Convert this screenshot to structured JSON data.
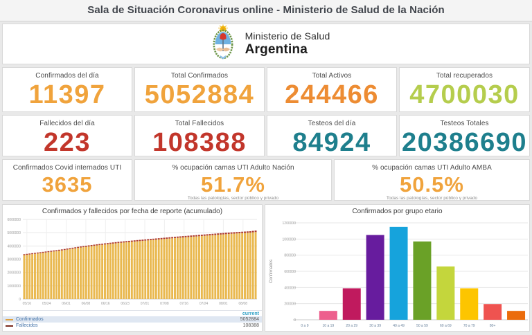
{
  "header": {
    "title": "Sala de Situación Coronavirus online - Ministerio de Salud de la Nación"
  },
  "logo": {
    "ministry": "Ministerio de Salud",
    "country": "Argentina",
    "emblem_icon": "argentina-coat-of-arms"
  },
  "kpis": {
    "row1": [
      {
        "label": "Confirmados del día",
        "value": "11397",
        "color": "#f0a33c"
      },
      {
        "label": "Total Confirmados",
        "value": "5052884",
        "color": "#f0a33c"
      },
      {
        "label": "Total Activos",
        "value": "244466",
        "color": "#ed8c33"
      },
      {
        "label": "Total recuperados",
        "value": "4700030",
        "color": "#b5cd4d"
      }
    ],
    "row2": [
      {
        "label": "Fallecidos del día",
        "value": "223",
        "color": "#c2362b"
      },
      {
        "label": "Total Fallecidos",
        "value": "108388",
        "color": "#c2362b"
      },
      {
        "label": "Testeos del día",
        "value": "84924",
        "color": "#1e7f8d"
      },
      {
        "label": "Testeos Totales",
        "value": "20386690",
        "color": "#1e7f8d"
      }
    ],
    "row3": [
      {
        "label": "Confirmados Covid internados UTI",
        "value": "3635",
        "color": "#f0a33c",
        "note": ""
      },
      {
        "label": "% ocupación camas UTI Adulto Nación",
        "value": "51.7%",
        "color": "#f0a33c",
        "note": "Todas las patologías, sector público y privado"
      },
      {
        "label": "% ocupación camas UTI Adulto AMBA",
        "value": "50.5%",
        "color": "#f0a33c",
        "note": "Todas las patologías, sector público y privado"
      }
    ]
  },
  "chart_data": [
    {
      "type": "bar",
      "stacked": true,
      "title": "Confirmados y fallecidos por fecha de reporte (acumulado)",
      "xlabel": "",
      "ylabel": "",
      "ylim": [
        0,
        6000000
      ],
      "y_ticks": [
        "0",
        "1000000",
        "2000000",
        "3000000",
        "4000000",
        "5000000",
        "6000000"
      ],
      "x_tick_labels": [
        "05/16",
        "05/24",
        "06/01",
        "06/08",
        "06/16",
        "06/23",
        "07/01",
        "07/08",
        "07/16",
        "07/24",
        "08/01",
        "08/08"
      ],
      "tick_start": 1,
      "tick_every": 7.3,
      "grid": true,
      "legend_header": "current",
      "series": [
        {
          "name": "Confirmados",
          "color": "#e9b84e",
          "swatch": "#dfa13f",
          "current": "5052884",
          "values": [
            3307285,
            3332317,
            3357350,
            3382382,
            3407415,
            3432447,
            3457480,
            3482512,
            3508327,
            3534141,
            3559956,
            3585771,
            3611586,
            3637400,
            3663215,
            3694820,
            3726424,
            3758029,
            3789633,
            3821238,
            3852842,
            3884447,
            3910405,
            3936364,
            3962322,
            3988281,
            4014239,
            4040198,
            4066156,
            4088477,
            4110797,
            4133118,
            4155438,
            4177759,
            4200079,
            4222400,
            4240709,
            4259018,
            4277327,
            4295637,
            4313946,
            4332255,
            4350564,
            4367680,
            4384795,
            4401911,
            4419027,
            4436143,
            4453258,
            4470374,
            4488001,
            4505628,
            4523255,
            4540882,
            4558509,
            4576136,
            4593763,
            4609319,
            4624876,
            4640432,
            4655988,
            4671544,
            4687101,
            4702657,
            4718328,
            4733998,
            4749669,
            4765339,
            4781010,
            4796680,
            4812351,
            4827645,
            4842939,
            4858233,
            4873526,
            4888820,
            4904114,
            4919408,
            4931343,
            4943277,
            4955212,
            4967147,
            4979082,
            4991016,
            5002951,
            5029075,
            5052884
          ]
        },
        {
          "name": "Fallecidos",
          "color": "#ae3b30",
          "swatch": "#7a2a1d",
          "current": "108388",
          "values": [
            71027,
            71429,
            71831,
            72232,
            72634,
            73036,
            73438,
            73840,
            74242,
            74643,
            75045,
            75447,
            75849,
            76251,
            76652,
            77054,
            77456,
            78019,
            78583,
            79146,
            79709,
            80273,
            80836,
            81400,
            81963,
            82526,
            83090,
            83653,
            84216,
            84780,
            85343,
            85903,
            86463,
            87023,
            87583,
            88143,
            88703,
            89263,
            89824,
            90384,
            90944,
            91504,
            92064,
            92624,
            93184,
            93744,
            94304,
            94658,
            95011,
            95365,
            95719,
            96072,
            96426,
            96780,
            97133,
            97487,
            97840,
            98194,
            98548,
            98901,
            99255,
            99600,
            99944,
            100289,
            100633,
            100978,
            101323,
            101667,
            102012,
            102356,
            102701,
            103045,
            103390,
            103735,
            104079,
            104424,
            104768,
            105113,
            105477,
            105841,
            106205,
            106569,
            106932,
            107296,
            107660,
            108024,
            108388
          ]
        }
      ]
    },
    {
      "type": "bar",
      "title": "Confirmados por grupo etario",
      "xlabel": "",
      "ylabel": "Confirmados",
      "ylim": [
        0,
        1200000
      ],
      "y_ticks": [
        "0",
        "200000",
        "400000",
        "600000",
        "800000",
        "1000000",
        "1200000"
      ],
      "grid": true,
      "categories": [
        "0 a 9",
        "10 a 19",
        "20 a 29",
        "30 a 39",
        "40 a 49",
        "50 a 59",
        "60 a 69",
        "70 a 79",
        "80+",
        ""
      ],
      "values": [
        0,
        110000,
        390000,
        1050000,
        1150000,
        970000,
        660000,
        390000,
        195000,
        110000
      ],
      "colors": [
        "#ed5f8d",
        "#ed5f8d",
        "#c01a5e",
        "#671c9e",
        "#16a3dc",
        "#6aa127",
        "#c4d63c",
        "#fdc500",
        "#ef5350",
        "#eb6c0c"
      ]
    }
  ]
}
